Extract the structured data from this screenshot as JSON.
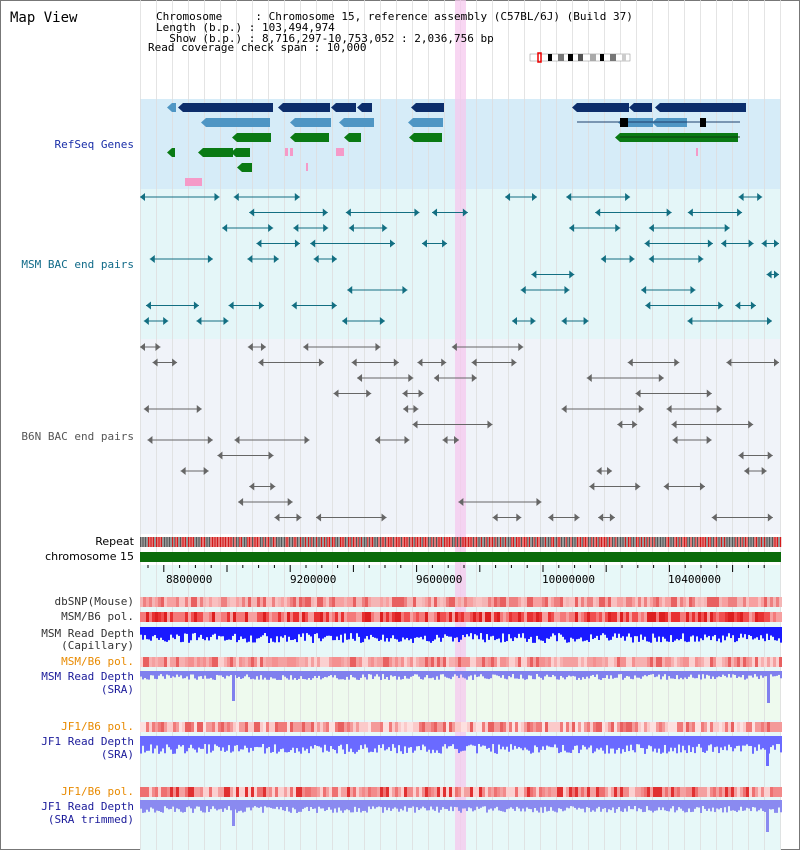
{
  "header": {
    "title": "Map View",
    "chromosome_line": "Chromosome     : Chromosome 15, reference assembly (C57BL/6J) (Build 37)",
    "length_line": "Length (b.p.) : 103,494,974",
    "show_line": "  Show (b.p.) : 8,716,297-10,753,052 : 2,036,756 bp",
    "span_line": "Read coverage check span : 10,000"
  },
  "tracks": {
    "refseq": "RefSeq Genes",
    "msm_bac": "MSM BAC end pairs",
    "b6n_bac": "B6N BAC end pairs",
    "repeat": "Repeat",
    "chromosome": "chromosome 15",
    "dbsnp": "dbSNP(Mouse)",
    "msm_b6_pol_1": "MSM/B6 pol.",
    "msm_read_depth_cap": "MSM Read Depth",
    "msm_read_depth_cap_sub": "(Capillary)",
    "msm_b6_pol_2": "MSM/B6 pol.",
    "msm_read_depth_sra": "MSM Read Depth",
    "msm_read_depth_sra_sub": "(SRA)",
    "jf1_b6_pol_1": "JF1/B6 pol.",
    "jf1_read_depth_sra": "JF1 Read Depth",
    "jf1_read_depth_sra_sub": "(SRA)",
    "jf1_b6_pol_2": "JF1/B6 pol.",
    "jf1_read_depth_trim": "JF1 Read Depth",
    "jf1_read_depth_trim_sub": "(SRA trimmed)"
  },
  "axis": {
    "ticks": [
      "8800000",
      "9200000",
      "9600000",
      "10000000",
      "10400000"
    ]
  },
  "colors": {
    "refseq_bg": "#d6ecf8",
    "msm_bg": "#e4f6f8",
    "b6n_bg": "#eef2f8",
    "navy": "#0c2d6b",
    "steel": "#4f96c4",
    "green": "#0a7a14",
    "pink": "#f59ac8",
    "teal": "#136f82",
    "gray": "#666666",
    "label_dark": "#000000",
    "label_blue": "#1a2fa8",
    "label_teal": "#106a88",
    "label_orange": "#e88a00",
    "label_navy": "#1b1b9a"
  }
}
